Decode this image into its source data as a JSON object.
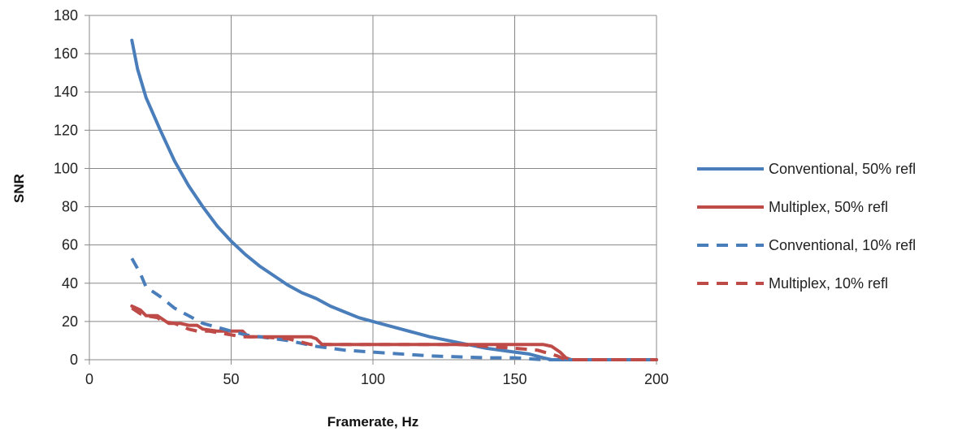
{
  "chart_data": {
    "type": "line",
    "xlabel": "Framerate, Hz",
    "ylabel": "SNR",
    "xlim": [
      0,
      200
    ],
    "ylim": [
      0,
      180
    ],
    "xticks": [
      0,
      50,
      100,
      150,
      200
    ],
    "yticks": [
      0,
      20,
      40,
      60,
      80,
      100,
      120,
      140,
      160,
      180
    ],
    "grid": true,
    "legend_position": "right",
    "series": [
      {
        "name": "Conventional, 50% refl",
        "color": "#4a7ebb",
        "dash": "solid",
        "points": [
          [
            15,
            167
          ],
          [
            17,
            152
          ],
          [
            20,
            137
          ],
          [
            25,
            120
          ],
          [
            30,
            104
          ],
          [
            35,
            91
          ],
          [
            40,
            80
          ],
          [
            45,
            70
          ],
          [
            50,
            62
          ],
          [
            55,
            55
          ],
          [
            60,
            49
          ],
          [
            65,
            44
          ],
          [
            70,
            39
          ],
          [
            75,
            35
          ],
          [
            80,
            32
          ],
          [
            85,
            28
          ],
          [
            90,
            25
          ],
          [
            95,
            22
          ],
          [
            100,
            20
          ],
          [
            110,
            16
          ],
          [
            120,
            12
          ],
          [
            130,
            9
          ],
          [
            140,
            6
          ],
          [
            150,
            4
          ],
          [
            155,
            3
          ],
          [
            160,
            1
          ],
          [
            163,
            0
          ],
          [
            200,
            0
          ]
        ]
      },
      {
        "name": "Multiplex, 50% refl",
        "color": "#be4b48",
        "dash": "solid",
        "points": [
          [
            15,
            28
          ],
          [
            18,
            26
          ],
          [
            20,
            23
          ],
          [
            24,
            23
          ],
          [
            26,
            21
          ],
          [
            28,
            19
          ],
          [
            32,
            19
          ],
          [
            35,
            18
          ],
          [
            38,
            18
          ],
          [
            40,
            16
          ],
          [
            45,
            15
          ],
          [
            50,
            15
          ],
          [
            54,
            15
          ],
          [
            56,
            12
          ],
          [
            60,
            12
          ],
          [
            70,
            12
          ],
          [
            78,
            12
          ],
          [
            80,
            11
          ],
          [
            82,
            8
          ],
          [
            90,
            8
          ],
          [
            100,
            8
          ],
          [
            120,
            8
          ],
          [
            140,
            8
          ],
          [
            160,
            8
          ],
          [
            163,
            7
          ],
          [
            166,
            4
          ],
          [
            168,
            1
          ],
          [
            170,
            0
          ],
          [
            200,
            0
          ]
        ]
      },
      {
        "name": "Conventional, 10% refl",
        "color": "#4a7ebb",
        "dash": "dashed",
        "points": [
          [
            15,
            53
          ],
          [
            18,
            45
          ],
          [
            20,
            38
          ],
          [
            25,
            33
          ],
          [
            30,
            27
          ],
          [
            35,
            23
          ],
          [
            40,
            19
          ],
          [
            45,
            17
          ],
          [
            50,
            15
          ],
          [
            55,
            13
          ],
          [
            60,
            12
          ],
          [
            70,
            10
          ],
          [
            80,
            7
          ],
          [
            90,
            5
          ],
          [
            100,
            4
          ],
          [
            120,
            2
          ],
          [
            140,
            1
          ],
          [
            150,
            1
          ],
          [
            160,
            0
          ],
          [
            200,
            0
          ]
        ]
      },
      {
        "name": "Multiplex, 10% refl",
        "color": "#be4b48",
        "dash": "dashed",
        "points": [
          [
            15,
            27
          ],
          [
            18,
            24
          ],
          [
            20,
            23
          ],
          [
            24,
            22
          ],
          [
            26,
            20
          ],
          [
            30,
            19
          ],
          [
            35,
            16
          ],
          [
            38,
            15
          ],
          [
            42,
            15
          ],
          [
            46,
            14
          ],
          [
            50,
            13
          ],
          [
            54,
            12
          ],
          [
            60,
            12
          ],
          [
            70,
            11
          ],
          [
            78,
            8
          ],
          [
            82,
            8
          ],
          [
            100,
            8
          ],
          [
            130,
            8
          ],
          [
            140,
            7
          ],
          [
            150,
            6
          ],
          [
            158,
            5
          ],
          [
            165,
            2
          ],
          [
            168,
            0
          ],
          [
            200,
            0
          ]
        ]
      }
    ]
  }
}
